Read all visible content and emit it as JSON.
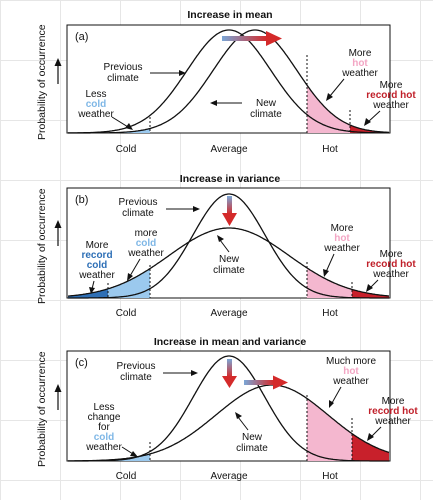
{
  "colors": {
    "cold": "#9bc9ee",
    "record_cold": "#2e6fb5",
    "hot": "#f4b7cf",
    "record_hot": "#c8202b",
    "arrow_red": "#d42a2a",
    "arrow_blue": "#7aa6d6"
  },
  "y_axis_label": "Probability of occurrence",
  "x_ticks": [
    "Cold",
    "Average",
    "Hot"
  ],
  "panels": [
    {
      "title": "Increase in mean",
      "letter": "(a)",
      "previous": "Previous",
      "previous2": "climate",
      "new": "New",
      "new2": "climate",
      "left_l1": "Less",
      "left_l2": "cold",
      "left_l3": "weather",
      "right_a1": "More",
      "right_a2": "hot",
      "right_a3": "weather",
      "right_b1": "More",
      "right_b2": "record hot",
      "right_b3": "weather"
    },
    {
      "title": "Increase in variance",
      "letter": "(b)",
      "previous": "Previous",
      "previous2": "climate",
      "new": "New",
      "new2": "climate",
      "more_cold1": "more",
      "more_cold2": "cold",
      "more_cold3": "weather",
      "rec_cold1": "More",
      "rec_cold2": "record",
      "rec_cold3": "cold",
      "rec_cold4": "weather",
      "right_a1": "More",
      "right_a2": "hot",
      "right_a3": "weather",
      "right_b1": "More",
      "right_b2": "record hot",
      "right_b3": "weather"
    },
    {
      "title": "Increase in mean and variance",
      "letter": "(c)",
      "previous": "Previous",
      "previous2": "climate",
      "new": "New",
      "new2": "climate",
      "left_l1": "Less",
      "left_l2": "change",
      "left_l3": "for",
      "left_l4": "cold",
      "left_l5": "weather",
      "right_a1": "Much more",
      "right_a2": "hot",
      "right_a3": "weather",
      "right_b1": "More",
      "right_b2": "record hot",
      "right_b3": "weather"
    }
  ]
}
